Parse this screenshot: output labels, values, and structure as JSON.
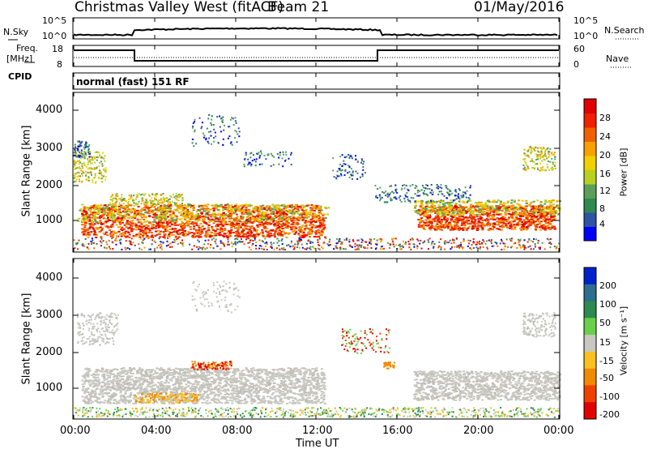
{
  "header": {
    "radar": "Christmas Valley West (fitACF)",
    "beam": "Beam 21",
    "date": "01/May/2016"
  },
  "top_panels": {
    "nsky_label": "N.Sky",
    "nsky_ticks": [
      "10^5",
      "10^0"
    ],
    "nsearch_label": "N.Search",
    "nsearch_ticks": [
      "10^5",
      "10^0"
    ],
    "freq_label_1": "Freq.",
    "freq_label_2": "[MHz]",
    "freq_ticks": [
      "18",
      "8"
    ],
    "nave_label": "Nave",
    "nave_ticks": [
      "60",
      "0"
    ],
    "cpid_label": "CPID",
    "cpid_value": "normal (fast) 151 RF"
  },
  "time_axis": {
    "label": "Time UT",
    "ticks": [
      "00:00",
      "04:00",
      "08:00",
      "12:00",
      "16:00",
      "20:00",
      "00:00"
    ]
  },
  "chart_data": [
    {
      "type": "heatmap",
      "id": "power",
      "ylabel": "Slant Range [km]",
      "yticks": [
        "4000",
        "3000",
        "2000",
        "1000"
      ],
      "colorbar_label": "Power [dB]",
      "colorbar_ticks": [
        "28",
        "24",
        "20",
        "16",
        "12",
        "8",
        "4"
      ],
      "colors": [
        "#0000ff",
        "#2e54a4",
        "#2e8a4e",
        "#5aa05a",
        "#b8d020",
        "#f0d000",
        "#f8a000",
        "#f06000",
        "#f02000",
        "#e00000"
      ]
    },
    {
      "type": "heatmap",
      "id": "velocity",
      "ylabel": "Slant Range [km]",
      "yticks": [
        "4000",
        "3000",
        "2000",
        "1000"
      ],
      "colorbar_label": "Velocity [m s⁻¹]",
      "colorbar_ticks": [
        "200",
        "100",
        "50",
        "15",
        "-15",
        "-50",
        "-100",
        "-200"
      ],
      "colors": [
        "#0022cc",
        "#2e6e8e",
        "#2e8a4e",
        "#6ad04a",
        "#c8c8c0",
        "#f8c020",
        "#f08a00",
        "#f04000",
        "#e00000"
      ]
    }
  ]
}
